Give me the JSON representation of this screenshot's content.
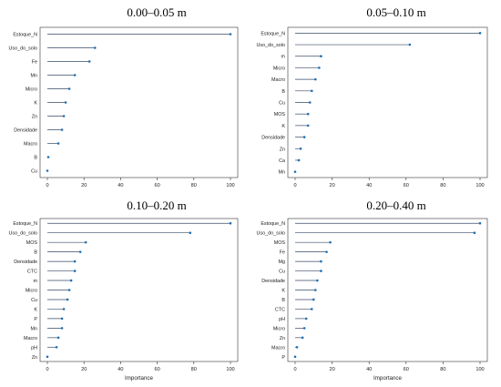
{
  "chart_data": [
    {
      "type": "lollipop",
      "title": "0.00–0.05 m",
      "xlabel": "",
      "xlim": [
        0,
        100
      ],
      "xticks": [
        "0",
        "20",
        "40",
        "60",
        "80",
        "100"
      ],
      "categories": [
        "Estoque_N",
        "Uso_do_solo",
        "Fe",
        "Mn",
        "Micro",
        "K",
        "Zn",
        "Densidade",
        "Macro",
        "B",
        "Cu"
      ],
      "values": [
        100,
        26,
        23,
        15,
        12,
        10,
        9,
        8,
        6,
        0.5,
        0
      ]
    },
    {
      "type": "lollipop",
      "title": "0.05–0.10 m",
      "xlabel": "",
      "xlim": [
        0,
        100
      ],
      "xticks": [
        "0",
        "20",
        "40",
        "60",
        "80",
        "100"
      ],
      "categories": [
        "Estoque_N",
        "Uso_do_solo",
        "m",
        "Micro",
        "Macro",
        "B",
        "Cu",
        "MOS",
        "K",
        "Densidade",
        "Zn",
        "Ca",
        "Mn"
      ],
      "values": [
        100,
        62,
        14,
        13,
        11,
        9,
        8,
        7,
        7,
        5,
        3,
        2,
        0
      ]
    },
    {
      "type": "lollipop",
      "title": "0.10–0.20 m",
      "xlabel": "Importance",
      "xlim": [
        0,
        100
      ],
      "xticks": [
        "0",
        "20",
        "40",
        "60",
        "80",
        "100"
      ],
      "categories": [
        "Estoque_N",
        "Uso_do_solo",
        "MOS",
        "B",
        "Densidade",
        "CTC",
        "m",
        "Micro",
        "Cu",
        "K",
        "P",
        "Mn",
        "Macro",
        "pH",
        "Zn"
      ],
      "values": [
        100,
        78,
        21,
        18,
        15,
        15,
        13,
        12,
        11,
        9,
        8,
        8,
        6,
        5,
        0
      ]
    },
    {
      "type": "lollipop",
      "title": "0.20–0.40 m",
      "xlabel": "Importance",
      "xlim": [
        0,
        100
      ],
      "xticks": [
        "0",
        "20",
        "40",
        "60",
        "80",
        "100"
      ],
      "categories": [
        "Estoque_N",
        "Uso_do_solo",
        "MOS",
        "Fe",
        "Mg",
        "Cu",
        "Densidade",
        "K",
        "B",
        "CTC",
        "pH",
        "Micro",
        "Zn",
        "Macro",
        "P"
      ],
      "values": [
        100,
        97,
        19,
        17,
        14,
        14,
        12,
        11,
        10,
        9,
        6,
        5,
        4,
        1,
        0
      ]
    }
  ]
}
